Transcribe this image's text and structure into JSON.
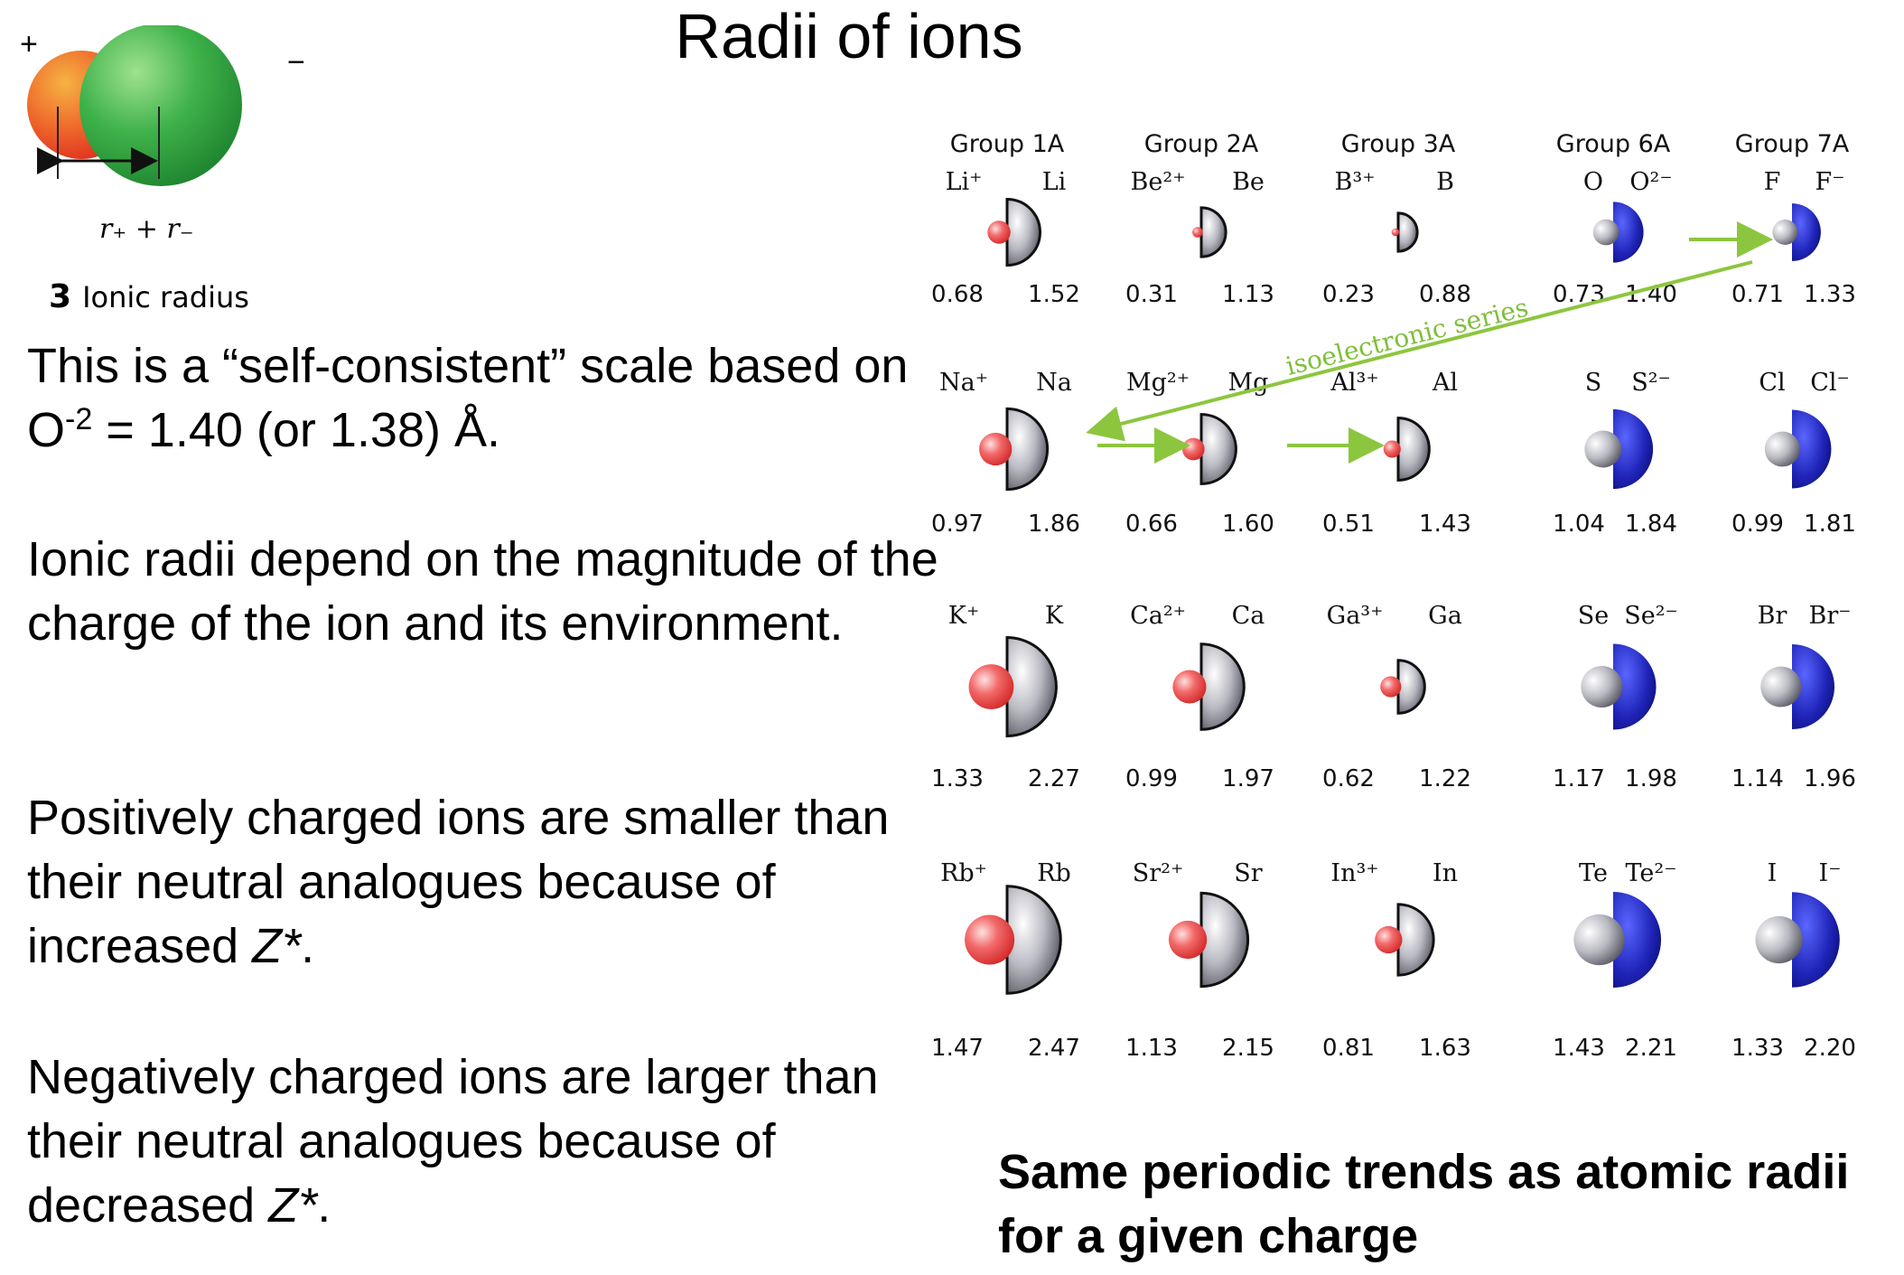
{
  "title": "Radii of ions",
  "figure": {
    "plus_sign": "+",
    "minus_sign": "−",
    "distance_label": "r₊ + r₋",
    "caption_number": "3",
    "caption_text": "Ionic radius"
  },
  "paragraphs": [
    {
      "before": "This is a “self-consistent” scale based on O",
      "sup": "-2",
      "after": " = 1.40 (or 1.38) Å."
    },
    {
      "text": "Ionic radii depend on the magnitude of the charge of the ion and its environment."
    },
    {
      "before": "Positively charged ions are smaller than their neutral analogues because of increased ",
      "italic": "Z*",
      "after": "."
    },
    {
      "before": "Negatively charged ions are larger than their neutral analogues because of decreased ",
      "italic": "Z*",
      "after": "."
    }
  ],
  "bottom_note": "Same periodic trends as atomic radii for a given charge",
  "chart_data": {
    "type": "table",
    "unit": "Å",
    "annotation": "isoelectronic series",
    "colors": {
      "cation": "#e83a3a",
      "anion": "#1e1ea8",
      "neutral": "#8c8c96",
      "arrow": "#8cc63f"
    },
    "groups": [
      {
        "label": "Group 1A",
        "kind": "cation",
        "cells": [
          {
            "ion": "Li⁺",
            "atom": "Li",
            "ion_r": 0.68,
            "atom_r": 1.52
          },
          {
            "ion": "Na⁺",
            "atom": "Na",
            "ion_r": 0.97,
            "atom_r": 1.86
          },
          {
            "ion": "K⁺",
            "atom": "K",
            "ion_r": 1.33,
            "atom_r": 2.27
          },
          {
            "ion": "Rb⁺",
            "atom": "Rb",
            "ion_r": 1.47,
            "atom_r": 2.47
          }
        ]
      },
      {
        "label": "Group 2A",
        "kind": "cation",
        "cells": [
          {
            "ion": "Be²⁺",
            "atom": "Be",
            "ion_r": 0.31,
            "atom_r": 1.13
          },
          {
            "ion": "Mg²⁺",
            "atom": "Mg",
            "ion_r": 0.66,
            "atom_r": 1.6
          },
          {
            "ion": "Ca²⁺",
            "atom": "Ca",
            "ion_r": 0.99,
            "atom_r": 1.97
          },
          {
            "ion": "Sr²⁺",
            "atom": "Sr",
            "ion_r": 1.13,
            "atom_r": 2.15
          }
        ]
      },
      {
        "label": "Group 3A",
        "kind": "cation",
        "cells": [
          {
            "ion": "B³⁺",
            "atom": "B",
            "ion_r": 0.23,
            "atom_r": 0.88
          },
          {
            "ion": "Al³⁺",
            "atom": "Al",
            "ion_r": 0.51,
            "atom_r": 1.43
          },
          {
            "ion": "Ga³⁺",
            "atom": "Ga",
            "ion_r": 0.62,
            "atom_r": 1.22
          },
          {
            "ion": "In³⁺",
            "atom": "In",
            "ion_r": 0.81,
            "atom_r": 1.63
          }
        ]
      },
      {
        "label": "Group 6A",
        "kind": "anion",
        "cells": [
          {
            "atom": "O",
            "ion": "O²⁻",
            "atom_r": 0.73,
            "ion_r": 1.4
          },
          {
            "atom": "S",
            "ion": "S²⁻",
            "atom_r": 1.04,
            "ion_r": 1.84
          },
          {
            "atom": "Se",
            "ion": "Se²⁻",
            "atom_r": 1.17,
            "ion_r": 1.98
          },
          {
            "atom": "Te",
            "ion": "Te²⁻",
            "atom_r": 1.43,
            "ion_r": 2.21
          }
        ]
      },
      {
        "label": "Group 7A",
        "kind": "anion",
        "cells": [
          {
            "atom": "F",
            "ion": "F⁻",
            "atom_r": 0.71,
            "ion_r": 1.33
          },
          {
            "atom": "Cl",
            "ion": "Cl⁻",
            "atom_r": 0.99,
            "ion_r": 1.81
          },
          {
            "atom": "Br",
            "ion": "Br⁻",
            "atom_r": 1.14,
            "ion_r": 1.96
          },
          {
            "atom": "I",
            "ion": "I⁻",
            "atom_r": 1.33,
            "ion_r": 2.2
          }
        ]
      }
    ]
  }
}
